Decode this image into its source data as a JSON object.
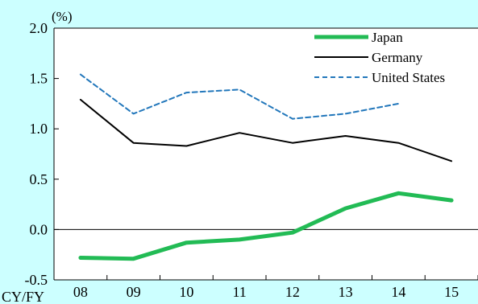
{
  "chart_data": {
    "type": "line",
    "title": "",
    "unit_label": "(%)",
    "xaxis_label": "CY/FY",
    "categories": [
      "08",
      "09",
      "10",
      "11",
      "12",
      "13",
      "14",
      "15"
    ],
    "ylim": [
      -0.5,
      2.0
    ],
    "yticks": [
      "2.0",
      "1.5",
      "1.0",
      "0.5",
      "0.0",
      "-0.5"
    ],
    "grid": false,
    "legend_position": "top-right",
    "series": [
      {
        "name": "Japan",
        "color": "#22bb55",
        "style": "solid-thick",
        "values": [
          -0.28,
          -0.29,
          -0.13,
          -0.1,
          -0.03,
          0.21,
          0.36,
          0.29
        ]
      },
      {
        "name": "Germany",
        "color": "#000000",
        "style": "solid",
        "values": [
          1.29,
          0.86,
          0.83,
          0.96,
          0.86,
          0.93,
          0.86,
          0.68
        ]
      },
      {
        "name": "United States",
        "color": "#2277bb",
        "style": "dashed",
        "values": [
          1.54,
          1.15,
          1.36,
          1.39,
          1.1,
          1.15,
          1.25,
          null
        ]
      }
    ]
  }
}
